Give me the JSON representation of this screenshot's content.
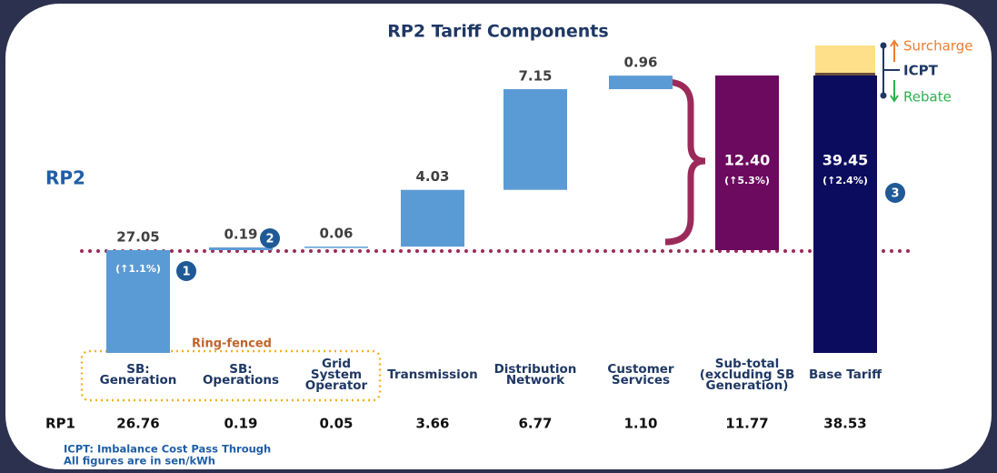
{
  "chart_data": {
    "type": "waterfall",
    "title": "RP2 Tariff Components",
    "categories": [
      "SB: Generation",
      "SB: Operations",
      "Grid System Operator",
      "Transmission",
      "Distribution Network",
      "Customer Services",
      "Sub-total (excluding SB Generation)",
      "Base Tariff"
    ],
    "series_label": "RP2",
    "values": [
      27.05,
      0.19,
      0.06,
      4.03,
      7.15,
      0.96,
      12.4,
      39.45
    ],
    "value_labels": [
      "27.05",
      "0.19",
      "0.06",
      "4.03",
      "7.15",
      "0.96",
      "12.40",
      "39.45"
    ],
    "colors": [
      "#5b9bd5",
      "#5b9bd5",
      "#5b9bd5",
      "#5b9bd5",
      "#5b9bd5",
      "#5b9bd5",
      "#6b0a5e",
      "#0c0c5e"
    ],
    "annotations": [
      "(↑1.1%)",
      "(↑5.3%)",
      "(↑2.4%)"
    ],
    "markers": [
      "1",
      "2",
      "3"
    ],
    "group_label": "Ring-fenced",
    "rp1": {
      "label": "RP1",
      "values": [
        26.76,
        0.19,
        0.05,
        3.66,
        6.77,
        1.1,
        11.77,
        38.53
      ],
      "value_labels": [
        "26.76",
        "0.19",
        "0.05",
        "3.66",
        "6.77",
        "1.10",
        "11.77",
        "38.53"
      ]
    },
    "legend": {
      "up": "Surcharge",
      "label": "ICPT",
      "down": "Rebate"
    },
    "notes": [
      "ICPT: Imbalance Cost Pass Through",
      "All figures are in sen/kWh"
    ]
  }
}
